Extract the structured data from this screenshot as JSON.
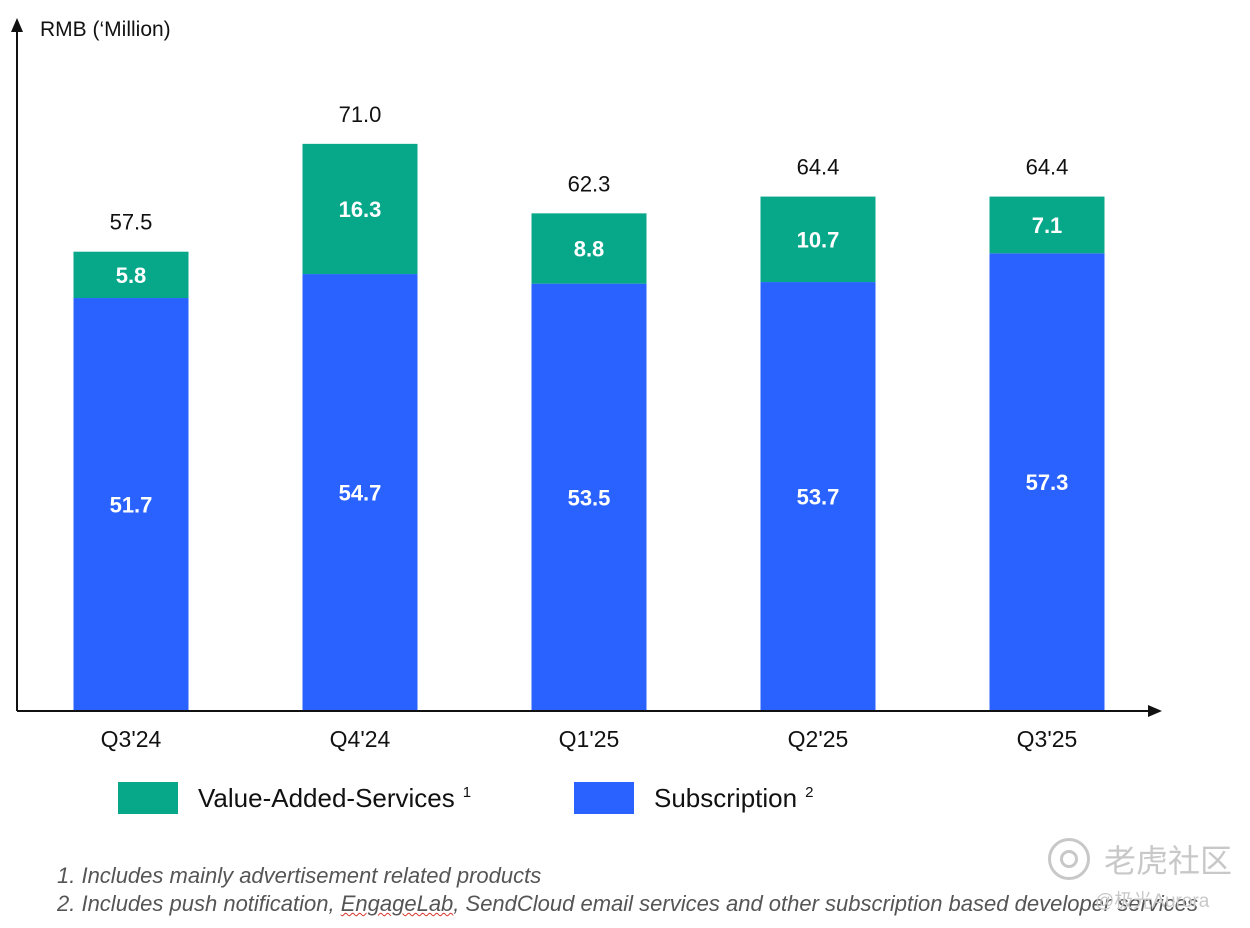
{
  "chart_data": {
    "type": "bar",
    "stacked": true,
    "ylabel": "RMB (‘Million)",
    "categories": [
      "Q3'24",
      "Q4'24",
      "Q1'25",
      "Q2'25",
      "Q3'25"
    ],
    "series": [
      {
        "name": "Subscription",
        "values": [
          51.7,
          54.7,
          53.5,
          53.7,
          57.3
        ],
        "color": "#2962ff"
      },
      {
        "name": "Value-Added-Services",
        "values": [
          5.8,
          16.3,
          8.8,
          10.7,
          7.1
        ],
        "color": "#07a88a"
      }
    ],
    "totals": [
      57.5,
      71.0,
      62.3,
      64.4,
      64.4
    ],
    "ylim": [
      0,
      82
    ],
    "grid": false,
    "legend_position": "bottom"
  },
  "legend": {
    "vas_label": "Value-Added-Services",
    "vas_sup": "1",
    "sub_label": "Subscription",
    "sub_sup": "2"
  },
  "footnotes": {
    "note1": "1. Includes mainly advertisement related products",
    "note2_prefix": "2. Includes push notification, ",
    "note2_underlined": "EngageLab",
    "note2_suffix": ", SendCloud email services and other subscription based developer services"
  },
  "watermark": {
    "brand": "老虎社区",
    "handle": "@极光Aurora"
  }
}
